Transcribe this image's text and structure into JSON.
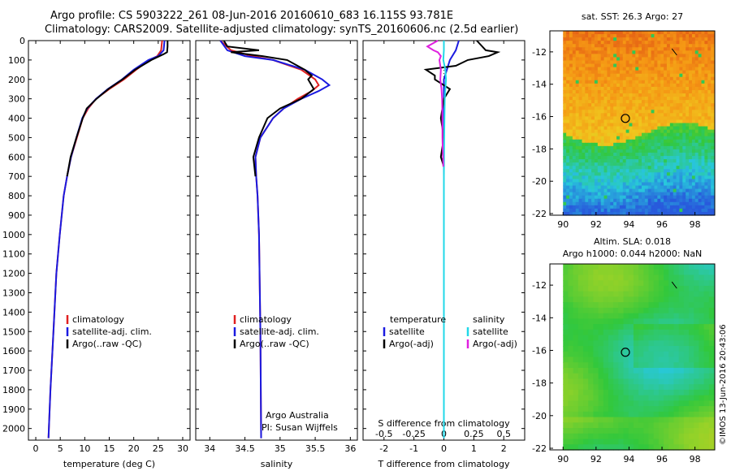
{
  "titles": {
    "line1": "Argo profile: CS 5903222_261 08-Jun-2016 20160610_683 16.115S 93.781E",
    "line2": "Climatology: CARS2009. Satellite-adjusted climatology: synTS_20160606.nc (2.5d earlier)"
  },
  "side_text": "©IMOS 13-Jun-2016 20:43:06",
  "colors": {
    "climatology": "#e02020",
    "satellite": "#1a1ae0",
    "argo": "#000000",
    "salinity_satellite": "#22d8e8",
    "salinity_argo": "#e020e0"
  },
  "chart_data": [
    {
      "type": "line",
      "panel": "temperature",
      "xlabel": "temperature (deg C)",
      "ylabel": "",
      "xlim": [
        -1.5,
        31.5
      ],
      "ylim": [
        2060,
        0
      ],
      "xticks": [
        0,
        5,
        10,
        15,
        20,
        25,
        30
      ],
      "yticks": [
        0,
        100,
        200,
        300,
        400,
        500,
        600,
        700,
        800,
        900,
        1000,
        1100,
        1200,
        1300,
        1400,
        1500,
        1600,
        1700,
        1800,
        1900,
        2000
      ],
      "legend": [
        "climatology",
        "satellite-adj. clim.",
        "Argo(..raw -QC)"
      ],
      "series": [
        {
          "name": "climatology",
          "color": "#e02020",
          "depth": [
            0,
            50,
            80,
            100,
            150,
            200,
            250,
            300,
            350,
            400,
            500,
            600,
            700,
            800,
            1000,
            1200,
            1500,
            1800,
            2050
          ],
          "values": [
            25.8,
            25.6,
            24.8,
            23.2,
            20.5,
            18.0,
            15.0,
            12.3,
            10.7,
            9.6,
            8.4,
            7.2,
            6.4,
            5.7,
            4.9,
            4.2,
            3.6,
            3.0,
            2.6
          ]
        },
        {
          "name": "satellite-adj. clim.",
          "color": "#1a1ae0",
          "depth": [
            0,
            50,
            80,
            100,
            150,
            200,
            250,
            300,
            350,
            400,
            500,
            600,
            700,
            800,
            1000,
            1200,
            1500,
            1800,
            2050
          ],
          "values": [
            26.3,
            26.1,
            25.0,
            23.0,
            20.0,
            17.6,
            14.7,
            12.3,
            10.5,
            9.5,
            8.3,
            7.2,
            6.4,
            5.7,
            4.9,
            4.2,
            3.6,
            3.0,
            2.6
          ]
        },
        {
          "name": "Argo(..raw -QC)",
          "color": "#000000",
          "depth": [
            0,
            30,
            60,
            70,
            100,
            150,
            200,
            250,
            300,
            350,
            400,
            500,
            600,
            700
          ],
          "values": [
            26.9,
            26.9,
            26.8,
            26.1,
            23.6,
            20.3,
            17.7,
            14.8,
            12.4,
            10.4,
            9.6,
            8.3,
            7.1,
            6.4
          ]
        }
      ],
      "annotations": []
    },
    {
      "type": "line",
      "panel": "salinity",
      "xlabel": "salinity",
      "xlim": [
        33.8,
        36.1
      ],
      "ylim": [
        2060,
        0
      ],
      "xticks": [
        34,
        34.5,
        35,
        35.5,
        36
      ],
      "legend": [
        "climatology",
        "satellite-adj. clim.",
        "Argo(..raw -QC)"
      ],
      "series": [
        {
          "name": "climatology",
          "color": "#e02020",
          "depth": [
            0,
            50,
            80,
            100,
            150,
            200,
            230,
            260,
            300,
            350,
            400,
            500,
            600,
            700,
            800,
            1000,
            1500,
            2050
          ],
          "values": [
            34.15,
            34.3,
            34.6,
            34.9,
            35.3,
            35.5,
            35.55,
            35.45,
            35.25,
            35.05,
            34.9,
            34.72,
            34.65,
            34.66,
            34.68,
            34.7,
            34.72,
            34.73
          ]
        },
        {
          "name": "satellite-adj. clim.",
          "color": "#1a1ae0",
          "depth": [
            0,
            50,
            80,
            100,
            150,
            200,
            230,
            260,
            300,
            350,
            400,
            500,
            600,
            700,
            800,
            1000,
            1500,
            2050
          ],
          "values": [
            34.15,
            34.25,
            34.5,
            34.9,
            35.35,
            35.6,
            35.7,
            35.55,
            35.3,
            35.05,
            34.9,
            34.72,
            34.65,
            34.66,
            34.68,
            34.7,
            34.72,
            34.73
          ]
        },
        {
          "name": "Argo(..raw -QC)",
          "color": "#000000",
          "depth": [
            0,
            30,
            50,
            60,
            80,
            100,
            150,
            180,
            200,
            250,
            300,
            350,
            400,
            500,
            600,
            700
          ],
          "values": [
            34.2,
            34.25,
            34.7,
            34.3,
            34.75,
            35.1,
            35.35,
            35.45,
            35.4,
            35.48,
            35.3,
            35.0,
            34.82,
            34.7,
            34.62,
            34.65
          ]
        }
      ],
      "annotations": [
        "Argo Australia",
        "PI: Susan Wijffels"
      ]
    },
    {
      "type": "line",
      "panel": "difference",
      "xlabel": "T difference from climatology",
      "xlabel_top": "S difference from climatology",
      "xlim": [
        -2.7,
        2.7
      ],
      "ylim": [
        2060,
        0
      ],
      "xticks": [
        -2,
        -1,
        0,
        1,
        2
      ],
      "xticks_top": [
        -0.5,
        -0.25,
        0,
        0.25,
        0.5
      ],
      "legend_headers": [
        "temperature",
        "salinity"
      ],
      "legend": [
        "satellite",
        "Argo(-adj)",
        "satellite",
        "Argo(-adj)"
      ],
      "series": [
        {
          "name": "temperature satellite",
          "color": "#1a1ae0",
          "depth": [
            0,
            50,
            100,
            150,
            200,
            300,
            400,
            500,
            700,
            1000,
            2050
          ],
          "values": [
            0.5,
            0.4,
            0.2,
            0.1,
            0.0,
            0.0,
            0.0,
            0.0,
            0.0,
            0.0,
            0.0
          ]
        },
        {
          "name": "temperature Argo(-adj)",
          "color": "#000000",
          "depth": [
            0,
            50,
            60,
            80,
            100,
            130,
            150,
            180,
            200,
            250,
            300,
            400,
            500,
            600,
            650
          ],
          "values": [
            1.1,
            1.4,
            1.8,
            1.5,
            0.8,
            0.4,
            -0.6,
            -0.3,
            -0.3,
            0.2,
            0.0,
            -0.1,
            0.0,
            -0.1,
            0.0
          ]
        },
        {
          "name": "salinity satellite",
          "color": "#22d8e8",
          "depth": [
            0,
            50,
            100,
            150,
            200,
            250,
            300,
            400,
            500,
            700,
            1000,
            2050
          ],
          "values": [
            0.0,
            0.0,
            -0.02,
            0.05,
            0.07,
            0.05,
            0.03,
            0.02,
            0.01,
            0.0,
            0.0,
            0.0
          ]
        },
        {
          "name": "salinity Argo(-adj)",
          "color": "#e020e0",
          "depth": [
            0,
            30,
            50,
            60,
            80,
            100,
            150,
            200,
            250,
            300,
            400,
            500,
            600,
            650
          ],
          "values": [
            -0.2,
            -0.55,
            -0.35,
            -0.2,
            -0.1,
            -0.15,
            -0.1,
            -0.12,
            -0.08,
            -0.06,
            -0.05,
            -0.05,
            -0.03,
            -0.02
          ]
        }
      ],
      "annotations": []
    },
    {
      "type": "heatmap",
      "panel": "sst_map",
      "title": "sat. SST: 26.3 Argo: 27",
      "xlim": [
        89.2,
        99.2
      ],
      "ylim": [
        -22.1,
        -10.7
      ],
      "xticks": [
        90,
        92,
        94,
        96,
        98
      ],
      "yticks": [
        -12,
        -14,
        -16,
        -18,
        -20,
        -22
      ],
      "profile_location": {
        "lon": 93.781,
        "lat": -16.115
      }
    },
    {
      "type": "heatmap",
      "panel": "sla_map",
      "title": "Altim. SLA: 0.018",
      "subtitle": "Argo h1000: 0.044 h2000: NaN",
      "xlim": [
        89.2,
        99.2
      ],
      "ylim": [
        -22.1,
        -10.7
      ],
      "xticks": [
        90,
        92,
        94,
        96,
        98
      ],
      "yticks": [
        -12,
        -14,
        -16,
        -18,
        -20,
        -22
      ],
      "profile_location": {
        "lon": 93.781,
        "lat": -16.115
      }
    }
  ]
}
